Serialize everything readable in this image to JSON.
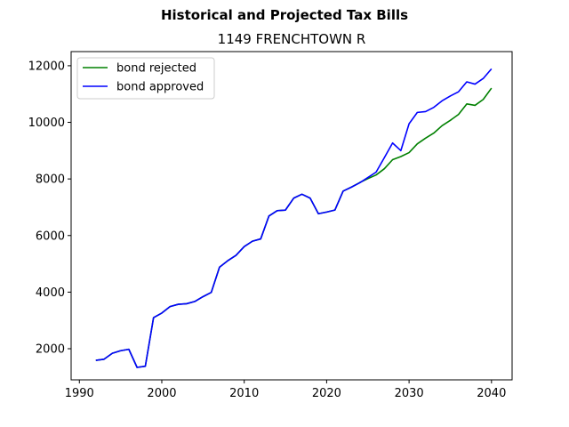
{
  "chart_data": {
    "type": "line",
    "suptitle": "Historical and Projected Tax Bills",
    "title": "1149 FRENCHTOWN R",
    "xlabel": "",
    "ylabel": "",
    "xlim": [
      1989,
      2042.5
    ],
    "ylim": [
      900,
      12500
    ],
    "xticks": [
      1990,
      2000,
      2010,
      2020,
      2030,
      2040
    ],
    "yticks": [
      2000,
      4000,
      6000,
      8000,
      10000,
      12000
    ],
    "grid": false,
    "legend_position": "upper left",
    "series": [
      {
        "name": "bond rejected",
        "color": "#008000",
        "x": [
          1992,
          1993,
          1994,
          1995,
          1996,
          1997,
          1998,
          1999,
          2000,
          2001,
          2002,
          2003,
          2004,
          2005,
          2006,
          2007,
          2008,
          2009,
          2010,
          2011,
          2012,
          2013,
          2014,
          2015,
          2016,
          2017,
          2018,
          2019,
          2020,
          2021,
          2022,
          2023,
          2024,
          2025,
          2026,
          2027,
          2028,
          2029,
          2030,
          2031,
          2032,
          2033,
          2034,
          2035,
          2036,
          2037,
          2038,
          2039,
          2040
        ],
        "y": [
          1590,
          1630,
          1840,
          1930,
          1980,
          1340,
          1380,
          3100,
          3260,
          3490,
          3570,
          3590,
          3670,
          3840,
          3990,
          4880,
          5110,
          5300,
          5610,
          5800,
          5880,
          6690,
          6880,
          6900,
          7320,
          7460,
          7320,
          6770,
          6830,
          6900,
          7570,
          7710,
          7870,
          8010,
          8140,
          8360,
          8680,
          8790,
          8930,
          9240,
          9440,
          9620,
          9880,
          10070,
          10280,
          10650,
          10600,
          10810,
          11210
        ]
      },
      {
        "name": "bond approved",
        "color": "#0000ff",
        "x": [
          1992,
          1993,
          1994,
          1995,
          1996,
          1997,
          1998,
          1999,
          2000,
          2001,
          2002,
          2003,
          2004,
          2005,
          2006,
          2007,
          2008,
          2009,
          2010,
          2011,
          2012,
          2013,
          2014,
          2015,
          2016,
          2017,
          2018,
          2019,
          2020,
          2021,
          2022,
          2023,
          2024,
          2025,
          2026,
          2027,
          2028,
          2029,
          2030,
          2031,
          2032,
          2033,
          2034,
          2035,
          2036,
          2037,
          2038,
          2039,
          2040
        ],
        "y": [
          1590,
          1630,
          1840,
          1930,
          1980,
          1340,
          1380,
          3100,
          3260,
          3490,
          3570,
          3590,
          3670,
          3840,
          3990,
          4880,
          5110,
          5300,
          5610,
          5800,
          5880,
          6690,
          6880,
          6900,
          7320,
          7460,
          7320,
          6770,
          6830,
          6900,
          7570,
          7710,
          7860,
          8050,
          8240,
          8750,
          9270,
          9000,
          9950,
          10350,
          10380,
          10530,
          10760,
          10930,
          11080,
          11430,
          11350,
          11550,
          11890
        ]
      }
    ]
  }
}
